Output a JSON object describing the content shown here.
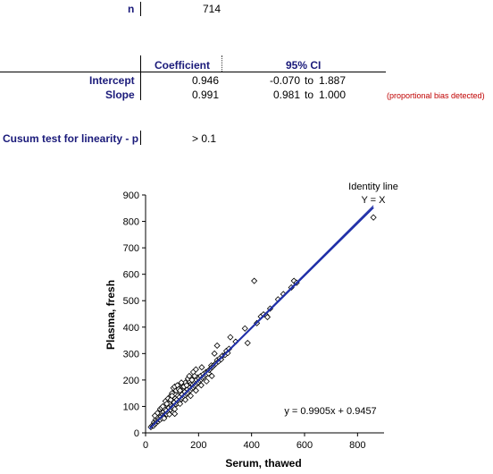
{
  "stats": {
    "n_label": "n",
    "n_value": "714",
    "table": {
      "col_coefficient": "Coefficient",
      "col_ci": "95% CI",
      "rows": [
        {
          "label": "Intercept",
          "coef": "0.946",
          "ci_low": "-0.070",
          "ci_to": "to",
          "ci_high": "1.887"
        },
        {
          "label": "Slope",
          "coef": "0.991",
          "ci_low": "0.981",
          "ci_to": "to",
          "ci_high": "1.000"
        }
      ],
      "note": "(proportional bias detected)"
    },
    "cusum_label": "Cusum test for linearity - p",
    "cusum_value": "> 0.1"
  },
  "chart_data": {
    "type": "scatter",
    "xlabel": "Serum, thawed",
    "ylabel": "Plasma, fresh",
    "xlim": [
      0,
      900
    ],
    "ylim": [
      0,
      900
    ],
    "xticks": [
      0,
      200,
      400,
      600,
      800
    ],
    "yticks": [
      0,
      100,
      200,
      300,
      400,
      500,
      600,
      700,
      800,
      900
    ],
    "annotations": {
      "identity_line_label": "Identity line",
      "identity_equation": "Y = X",
      "regression_equation": "y = 0.9905x + 0.9457"
    },
    "regression": {
      "slope": 0.9905,
      "intercept": 0.9457
    },
    "marker": "open-diamond",
    "line_color": "#1f2fa8",
    "points": [
      [
        20,
        22
      ],
      [
        25,
        28
      ],
      [
        30,
        27
      ],
      [
        32,
        40
      ],
      [
        35,
        33
      ],
      [
        38,
        50
      ],
      [
        40,
        38
      ],
      [
        42,
        45
      ],
      [
        45,
        60
      ],
      [
        48,
        44
      ],
      [
        50,
        52
      ],
      [
        52,
        70
      ],
      [
        55,
        50
      ],
      [
        58,
        62
      ],
      [
        60,
        75
      ],
      [
        62,
        55
      ],
      [
        65,
        68
      ],
      [
        68,
        80
      ],
      [
        70,
        65
      ],
      [
        72,
        90
      ],
      [
        75,
        72
      ],
      [
        78,
        85
      ],
      [
        80,
        70
      ],
      [
        82,
        100
      ],
      [
        85,
        78
      ],
      [
        88,
        95
      ],
      [
        90,
        82
      ],
      [
        92,
        110
      ],
      [
        95,
        88
      ],
      [
        98,
        102
      ],
      [
        100,
        95
      ],
      [
        102,
        120
      ],
      [
        105,
        100
      ],
      [
        108,
        115
      ],
      [
        110,
        72
      ],
      [
        112,
        130
      ],
      [
        115,
        108
      ],
      [
        118,
        125
      ],
      [
        120,
        112
      ],
      [
        122,
        140
      ],
      [
        125,
        118
      ],
      [
        128,
        135
      ],
      [
        130,
        122
      ],
      [
        132,
        150
      ],
      [
        135,
        128
      ],
      [
        138,
        145
      ],
      [
        140,
        132
      ],
      [
        142,
        160
      ],
      [
        145,
        138
      ],
      [
        148,
        155
      ],
      [
        150,
        142
      ],
      [
        152,
        170
      ],
      [
        155,
        148
      ],
      [
        158,
        165
      ],
      [
        160,
        152
      ],
      [
        162,
        178
      ],
      [
        165,
        158
      ],
      [
        168,
        172
      ],
      [
        170,
        162
      ],
      [
        172,
        185
      ],
      [
        175,
        168
      ],
      [
        178,
        182
      ],
      [
        180,
        172
      ],
      [
        182,
        192
      ],
      [
        185,
        178
      ],
      [
        188,
        195
      ],
      [
        190,
        182
      ],
      [
        192,
        200
      ],
      [
        195,
        188
      ],
      [
        198,
        210
      ],
      [
        200,
        192
      ],
      [
        202,
        205
      ],
      [
        205,
        198
      ],
      [
        208,
        215
      ],
      [
        210,
        202
      ],
      [
        212,
        248
      ],
      [
        215,
        208
      ],
      [
        218,
        222
      ],
      [
        220,
        212
      ],
      [
        225,
        218
      ],
      [
        228,
        230
      ],
      [
        230,
        222
      ],
      [
        235,
        232
      ],
      [
        238,
        225
      ],
      [
        240,
        238
      ],
      [
        245,
        242
      ],
      [
        248,
        255
      ],
      [
        250,
        248
      ],
      [
        255,
        252
      ],
      [
        260,
        258
      ],
      [
        265,
        262
      ],
      [
        270,
        275
      ],
      [
        275,
        270
      ],
      [
        280,
        282
      ],
      [
        285,
        278
      ],
      [
        290,
        292
      ],
      [
        300,
        295
      ],
      [
        305,
        310
      ],
      [
        310,
        302
      ],
      [
        315,
        318
      ],
      [
        260,
        300
      ],
      [
        270,
        330
      ],
      [
        320,
        362
      ],
      [
        340,
        345
      ],
      [
        375,
        395
      ],
      [
        385,
        340
      ],
      [
        410,
        575
      ],
      [
        420,
        415
      ],
      [
        435,
        440
      ],
      [
        445,
        448
      ],
      [
        455,
        445
      ],
      [
        460,
        438
      ],
      [
        470,
        470
      ],
      [
        500,
        505
      ],
      [
        520,
        525
      ],
      [
        550,
        550
      ],
      [
        560,
        575
      ],
      [
        570,
        568
      ],
      [
        860,
        815
      ],
      [
        55,
        90
      ],
      [
        60,
        95
      ],
      [
        75,
        120
      ],
      [
        85,
        130
      ],
      [
        95,
        140
      ],
      [
        100,
        150
      ],
      [
        105,
        170
      ],
      [
        110,
        175
      ],
      [
        115,
        160
      ],
      [
        120,
        180
      ],
      [
        140,
        175
      ],
      [
        150,
        190
      ],
      [
        160,
        205
      ],
      [
        170,
        210
      ],
      [
        180,
        230
      ],
      [
        190,
        240
      ],
      [
        165,
        215
      ],
      [
        135,
        190
      ],
      [
        125,
        165
      ],
      [
        95,
        125
      ],
      [
        70,
        55
      ],
      [
        90,
        70
      ],
      [
        110,
        90
      ],
      [
        130,
        110
      ],
      [
        150,
        125
      ],
      [
        170,
        140
      ],
      [
        190,
        160
      ],
      [
        210,
        180
      ],
      [
        230,
        195
      ],
      [
        250,
        215
      ],
      [
        80,
        110
      ],
      [
        100,
        140
      ],
      [
        45,
        75
      ],
      [
        35,
        65
      ],
      [
        65,
        100
      ],
      [
        130,
        160
      ],
      [
        145,
        175
      ],
      [
        155,
        180
      ],
      [
        175,
        200
      ],
      [
        185,
        215
      ]
    ]
  }
}
